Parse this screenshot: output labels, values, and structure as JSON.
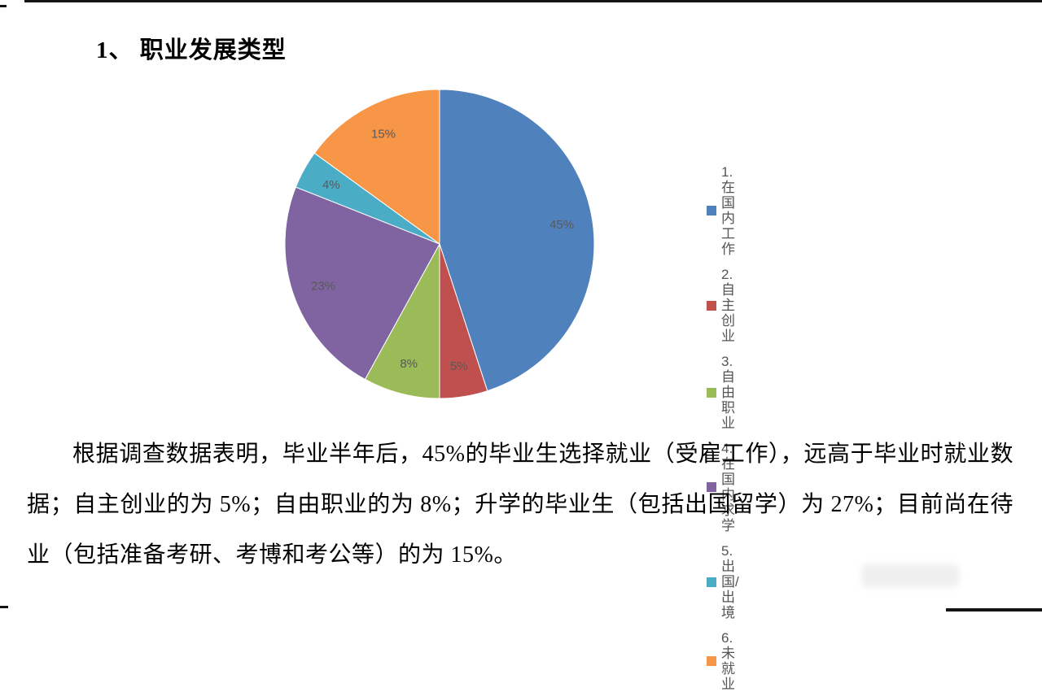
{
  "page": {
    "heading": "1、 职业发展类型",
    "paragraph": "根据调查数据表明，毕业半年后，45%的毕业生选择就业（受雇工作），远高于毕业时就业数据；自主创业的为 5%；自由职业的为 8%；升学的毕业生（包括出国留学）为 27%；目前尚在待业（包括准备考研、考博和考公等）的为 15%。"
  },
  "chart_data": {
    "type": "pie",
    "title": "",
    "direction": "clockwise",
    "start_angle_deg": 0,
    "legend_position": "right",
    "label_color": "#595959",
    "slices": [
      {
        "label": "1.在国内工作",
        "value": 45,
        "pct_label": "45%",
        "color": "#4F81BD"
      },
      {
        "label": "2.自主创业",
        "value": 5,
        "pct_label": "5%",
        "color": "#C0504D"
      },
      {
        "label": "3.自由职业",
        "value": 8,
        "pct_label": "8%",
        "color": "#9BBB59"
      },
      {
        "label": "4.在国内求学",
        "value": 23,
        "pct_label": "23%",
        "color": "#8064A2"
      },
      {
        "label": "5.出国/出境",
        "value": 4,
        "pct_label": "4%",
        "color": "#4BACC6"
      },
      {
        "label": "6.未就业",
        "value": 15,
        "pct_label": "15%",
        "color": "#F79646"
      }
    ]
  }
}
